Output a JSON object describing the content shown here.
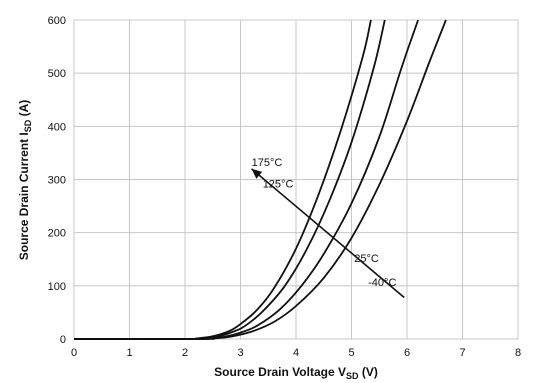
{
  "chart_data": {
    "type": "line",
    "xlabel": {
      "main": "Source Drain Voltage V",
      "sub": "SD",
      "unit": " (V)"
    },
    "ylabel": {
      "main": "Source Drain Current I",
      "sub": "SD",
      "unit": " (A)"
    },
    "xlim": [
      0,
      8
    ],
    "ylim": [
      0,
      600
    ],
    "xticks": [
      "0",
      "1",
      "2",
      "3",
      "4",
      "5",
      "6",
      "7",
      "8"
    ],
    "yticks": [
      "0",
      "100",
      "200",
      "300",
      "400",
      "500",
      "600"
    ],
    "grid": true,
    "legend": "none",
    "series": [
      {
        "name": "175°C",
        "x": [
          0,
          2.0,
          2.2,
          2.5,
          2.8,
          3.0,
          3.3,
          3.6,
          4.0,
          4.4,
          4.8,
          5.2,
          5.35
        ],
        "y": [
          0,
          0,
          1,
          5,
          15,
          28,
          55,
          95,
          170,
          270,
          390,
          530,
          600
        ]
      },
      {
        "name": "125°C",
        "x": [
          0,
          2.1,
          2.3,
          2.6,
          2.9,
          3.1,
          3.4,
          3.8,
          4.2,
          4.6,
          5.0,
          5.4,
          5.6
        ],
        "y": [
          0,
          0,
          1,
          5,
          15,
          26,
          52,
          100,
          170,
          260,
          370,
          510,
          600
        ]
      },
      {
        "name": "25°C",
        "x": [
          0,
          2.2,
          2.4,
          2.7,
          3.0,
          3.3,
          3.7,
          4.1,
          4.5,
          5.0,
          5.5,
          5.9,
          6.2
        ],
        "y": [
          0,
          0,
          1,
          4,
          12,
          25,
          55,
          100,
          160,
          255,
          380,
          510,
          600
        ]
      },
      {
        "name": "-40°C",
        "x": [
          0,
          2.3,
          2.5,
          2.8,
          3.2,
          3.6,
          4.0,
          4.5,
          5.0,
          5.5,
          6.0,
          6.4,
          6.7
        ],
        "y": [
          0,
          0,
          1,
          4,
          14,
          32,
          62,
          115,
          190,
          290,
          410,
          520,
          600
        ]
      }
    ],
    "annotations": {
      "labels": [
        {
          "text": "175°C",
          "x": 3.2,
          "y": 325
        },
        {
          "text": "125°C",
          "x": 3.4,
          "y": 285
        },
        {
          "text": "25°C",
          "x": 5.05,
          "y": 145
        },
        {
          "text": "-40°C",
          "x": 5.3,
          "y": 100
        }
      ],
      "arrow": {
        "from": [
          5.95,
          78
        ],
        "to": [
          3.2,
          320
        ]
      }
    }
  }
}
